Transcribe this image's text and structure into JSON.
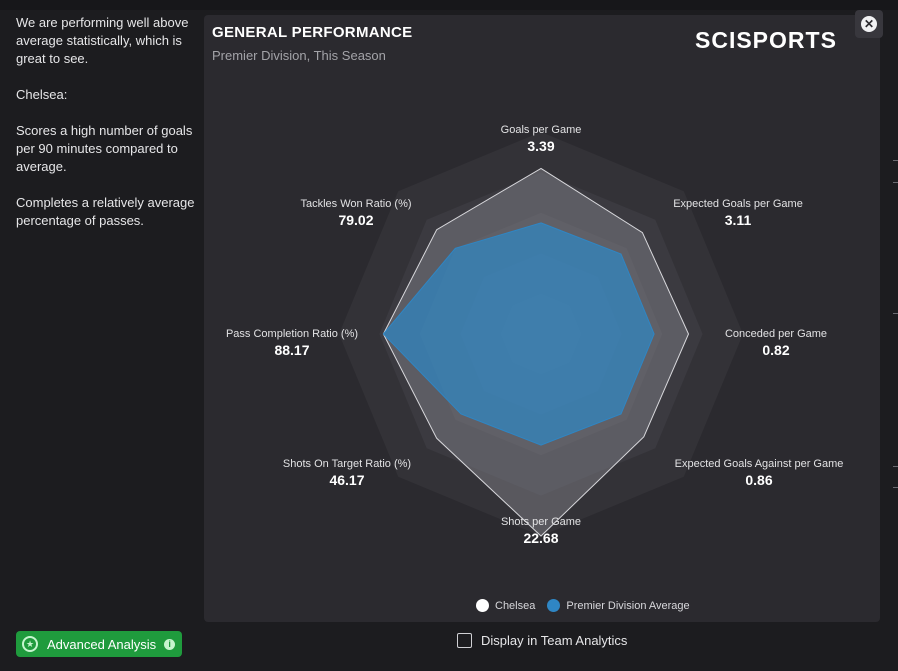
{
  "summary": {
    "paragraphs": [
      "We are performing well above average statistically, which is great to see.",
      "Chelsea:",
      "Scores a high number of goals per 90 minutes compared to average.",
      "Completes a relatively average percentage of passes."
    ]
  },
  "footer": {
    "advanced_analysis_label": "Advanced Analysis",
    "display_team_analytics_label": "Display in Team Analytics",
    "display_team_analytics_checked": false
  },
  "panel": {
    "title": "GENERAL PERFORMANCE",
    "subtitle": "Premier Division, This Season",
    "brand": "SCISPORTS"
  },
  "colors": {
    "team": "#ffffff",
    "average": "#2f86c4",
    "button": "#1f9b3d"
  },
  "chart_data": {
    "type": "radar",
    "axes": [
      {
        "name": "Goals per Game",
        "value": "3.39"
      },
      {
        "name": "Expected Goals per Game",
        "value": "3.11"
      },
      {
        "name": "Conceded per Game",
        "value": "0.82"
      },
      {
        "name": "Expected Goals Against per Game",
        "value": "0.86"
      },
      {
        "name": "Shots per Game",
        "value": "22.68"
      },
      {
        "name": "Shots On Target Ratio (%)",
        "value": "46.17"
      },
      {
        "name": "Pass Completion Ratio (%)",
        "value": "88.17"
      },
      {
        "name": "Tackles Won Ratio (%)",
        "value": "79.02"
      }
    ],
    "series": [
      {
        "name": "Chelsea",
        "color": "#ffffff",
        "relative_values": [
          0.82,
          0.71,
          0.73,
          0.72,
          1.0,
          0.73,
          0.78,
          0.73
        ]
      },
      {
        "name": "Premier Division Average",
        "color": "#2f86c4",
        "relative_values": [
          0.55,
          0.56,
          0.56,
          0.56,
          0.55,
          0.56,
          0.78,
          0.6
        ]
      }
    ],
    "grid_rings": 5,
    "legend_position": "bottom"
  }
}
